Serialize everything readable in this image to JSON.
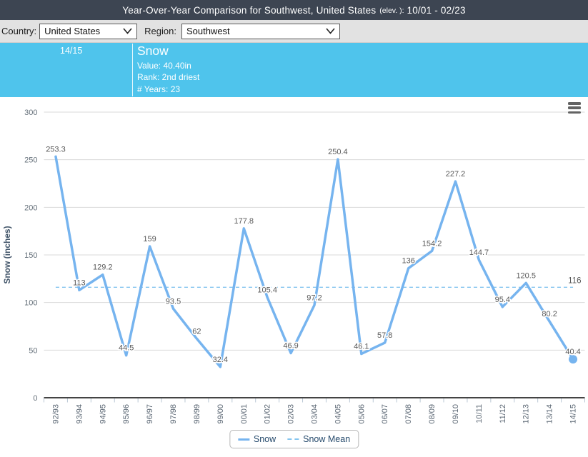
{
  "header": {
    "title_main": "Year-Over-Year Comparison for Southwest, United States",
    "title_elev": "(elev. ):",
    "title_range": "10/01 - 02/23",
    "bg_color": "#3d4552"
  },
  "controls": {
    "country_label": "Country:",
    "country_value": "United States",
    "region_label": "Region:",
    "region_value": "Southwest"
  },
  "banner": {
    "year": "14/15",
    "series": "Snow",
    "value_line": "Value: 40.40in",
    "rank_line": "Rank: 2nd driest",
    "years_line": "# Years: 23",
    "bg_color": "#4fc4ec"
  },
  "chart_data": {
    "type": "line",
    "x": [
      "92/93",
      "93/94",
      "94/95",
      "95/96",
      "96/97",
      "97/98",
      "98/99",
      "99/00",
      "00/01",
      "01/02",
      "02/03",
      "03/04",
      "04/05",
      "05/06",
      "06/07",
      "07/08",
      "08/09",
      "09/10",
      "10/11",
      "11/12",
      "12/13",
      "13/14",
      "14/15"
    ],
    "series": [
      {
        "name": "Snow",
        "values": [
          253.3,
          113,
          129.2,
          44.5,
          159,
          93.5,
          62,
          32.4,
          177.8,
          105.4,
          46.9,
          97.2,
          250.4,
          46.1,
          57.8,
          136,
          154.2,
          227.2,
          144.7,
          95.4,
          120.5,
          80.2,
          40.4
        ],
        "color": "#76b4ef",
        "dash": "solid",
        "marker_last_point": true
      },
      {
        "name": "Snow Mean",
        "mean_value": 116,
        "label": "116",
        "color": "#85c5ef",
        "dash": "dashed"
      }
    ],
    "ylabel": "Snow (inches)",
    "ylim": [
      0,
      300
    ],
    "ytick_interval": 50,
    "grid": true,
    "legend_position": "bottom",
    "data_labels": true
  },
  "menu_icon": "hamburger-menu-icon"
}
